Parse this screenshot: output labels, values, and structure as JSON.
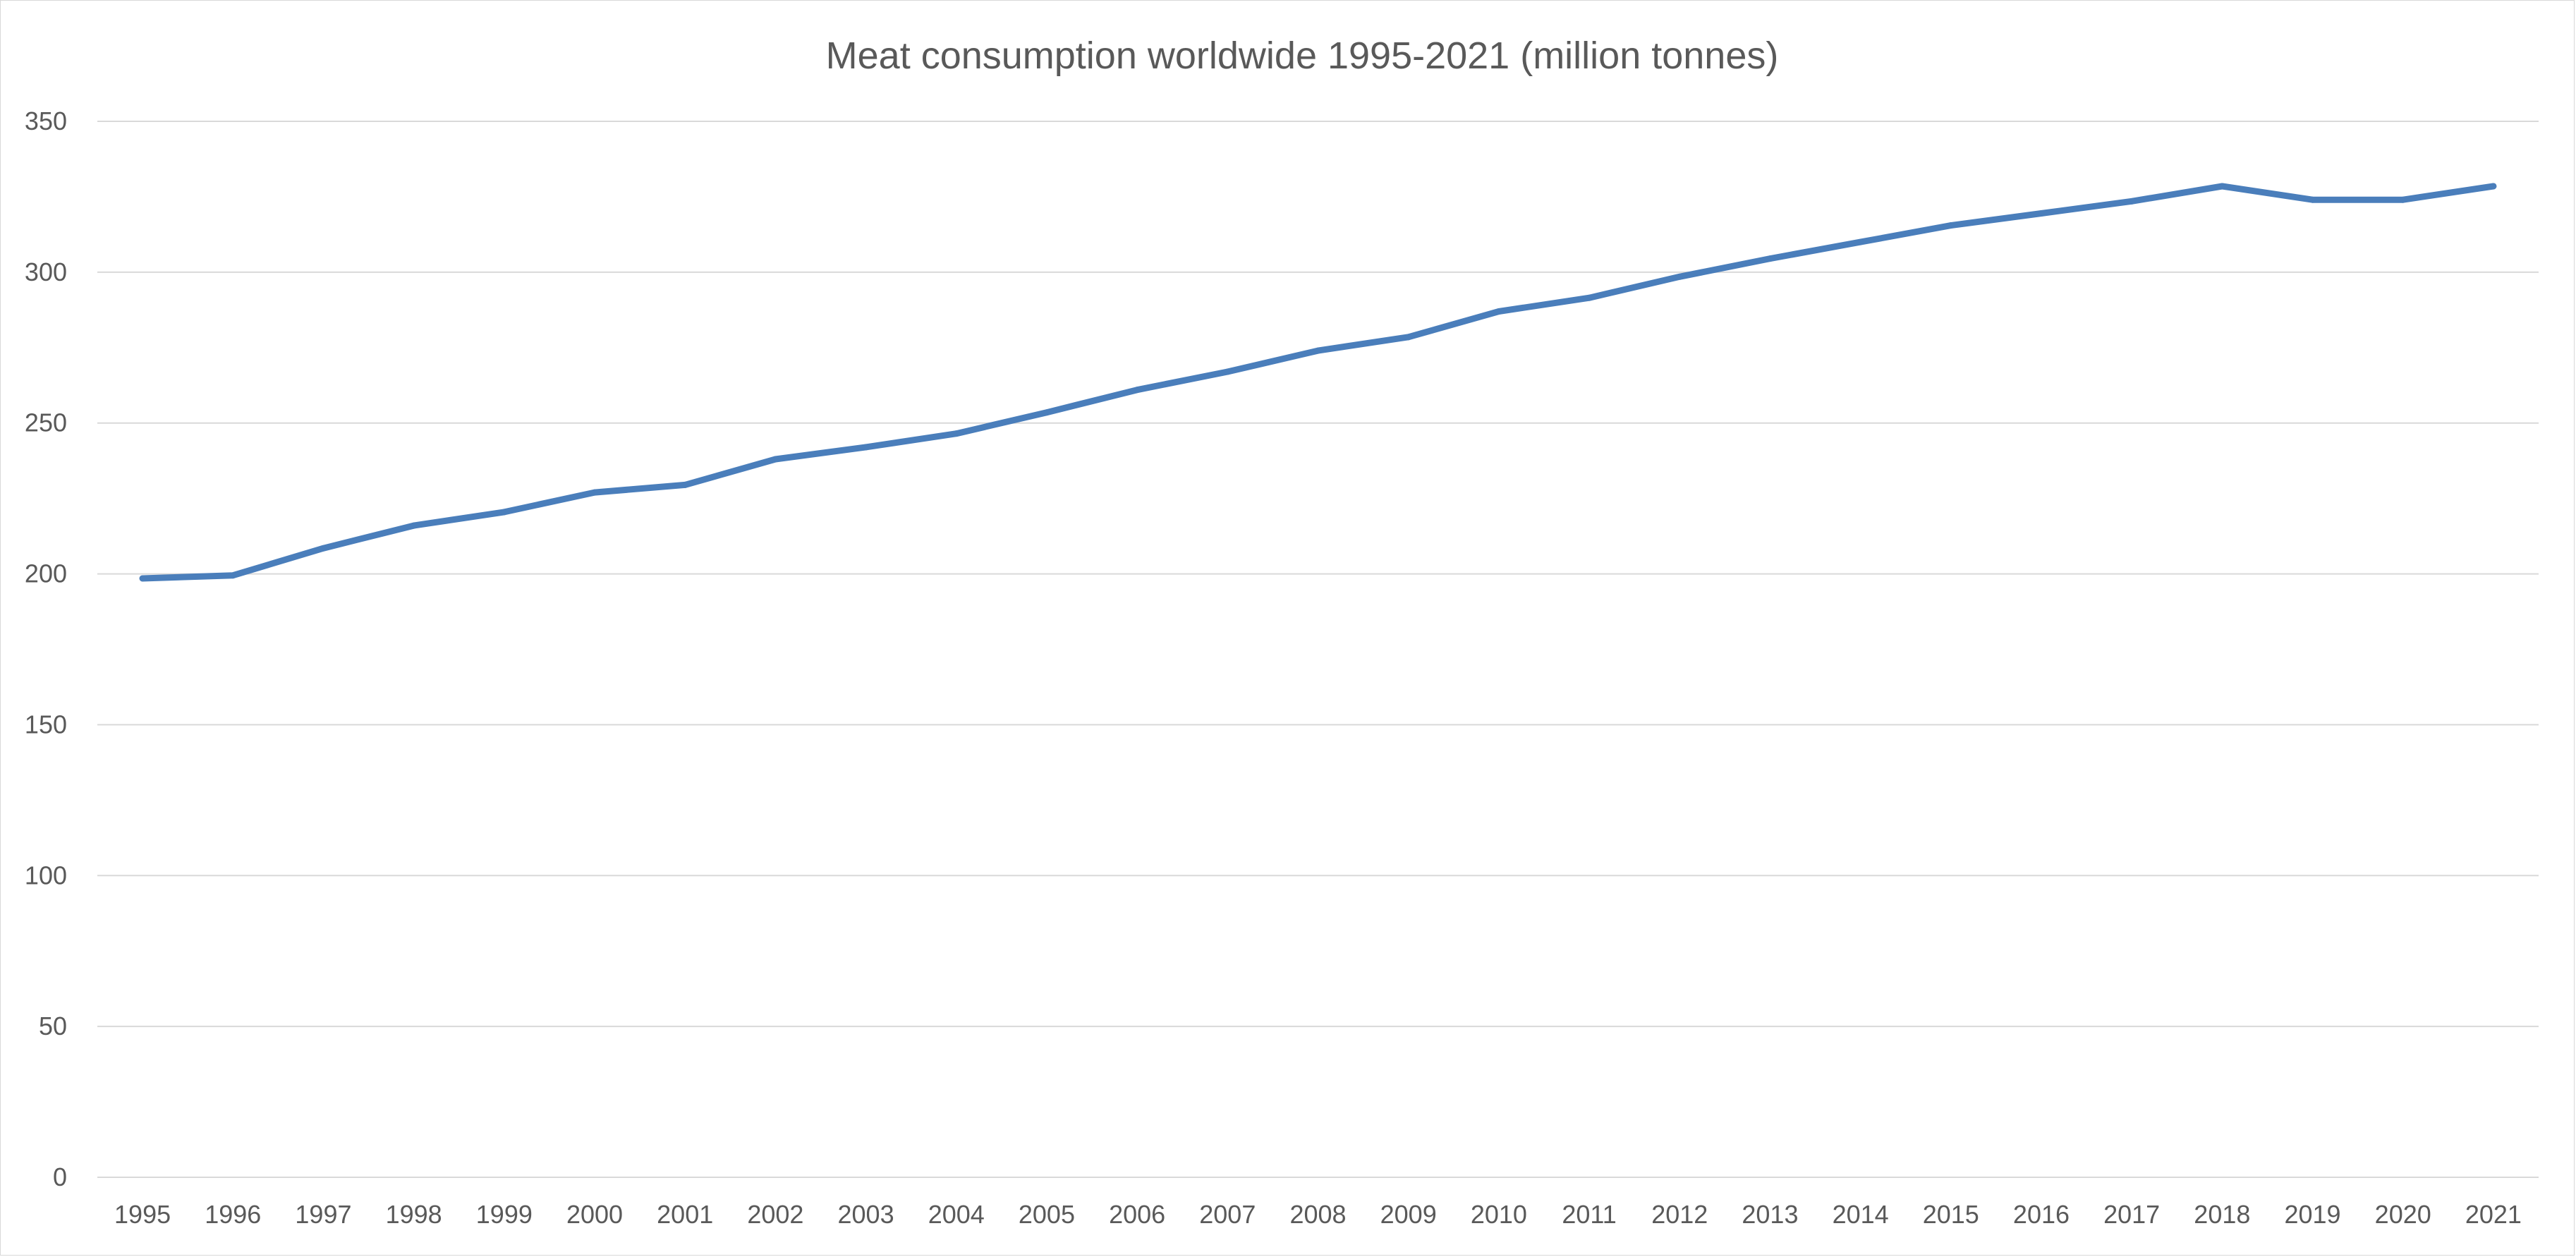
{
  "chart_data": {
    "type": "line",
    "title": "Meat consumption worldwide 1995-2021 (million tonnes)",
    "xlabel": "",
    "ylabel": "",
    "ylim": [
      0,
      350
    ],
    "yticks": [
      0,
      50,
      100,
      150,
      200,
      250,
      300,
      350
    ],
    "grid": true,
    "legend": "none",
    "categories": [
      "1995",
      "1996",
      "1997",
      "1998",
      "1999",
      "2000",
      "2001",
      "2002",
      "2003",
      "2004",
      "2005",
      "2006",
      "2007",
      "2008",
      "2009",
      "2010",
      "2011",
      "2012",
      "2013",
      "2014",
      "2015",
      "2016",
      "2017",
      "2018",
      "2019",
      "2020",
      "2021"
    ],
    "series": [
      {
        "color": "#4A7EBB",
        "values": [
          198.5,
          199.5,
          208.5,
          216,
          220.5,
          227,
          229.5,
          238,
          242,
          246.5,
          253.5,
          261,
          267,
          274,
          278.5,
          287,
          291.5,
          298.5,
          304.5,
          310,
          315.5,
          319.5,
          323.5,
          328.5,
          324,
          324,
          328.5
        ]
      }
    ]
  }
}
